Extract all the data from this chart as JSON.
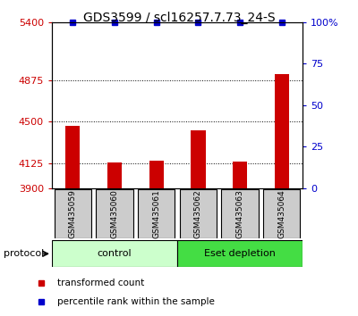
{
  "title": "GDS3599 / scl16257.7.73_24-S",
  "samples": [
    "GSM435059",
    "GSM435060",
    "GSM435061",
    "GSM435062",
    "GSM435063",
    "GSM435064"
  ],
  "red_values": [
    4460,
    4130,
    4150,
    4420,
    4140,
    4930
  ],
  "blue_values": [
    100,
    100,
    100,
    100,
    100,
    100
  ],
  "ylim_left": [
    3900,
    5400
  ],
  "ylim_right": [
    0,
    100
  ],
  "yticks_left": [
    3900,
    4125,
    4500,
    4875,
    5400
  ],
  "yticks_right": [
    0,
    25,
    50,
    75,
    100
  ],
  "ytick_labels_left": [
    "3900",
    "4125",
    "4500",
    "4875",
    "5400"
  ],
  "ytick_labels_right": [
    "0",
    "25",
    "50",
    "75",
    "100%"
  ],
  "grid_values": [
    4125,
    4500,
    4875
  ],
  "groups": [
    {
      "label": "control",
      "samples": [
        0,
        1,
        2
      ],
      "color": "#ccffcc"
    },
    {
      "label": "Eset depletion",
      "samples": [
        3,
        4,
        5
      ],
      "color": "#44dd44"
    }
  ],
  "protocol_label": "protocol",
  "legend": [
    {
      "color": "#cc0000",
      "label": "transformed count"
    },
    {
      "color": "#0000cc",
      "label": "percentile rank within the sample"
    }
  ],
  "bar_color_red": "#cc0000",
  "bar_color_blue": "#0000cc",
  "bar_width": 0.35,
  "background_color": "#ffffff",
  "sample_box_color": "#cccccc",
  "title_fontsize": 10,
  "tick_fontsize": 8,
  "label_fontsize": 8
}
